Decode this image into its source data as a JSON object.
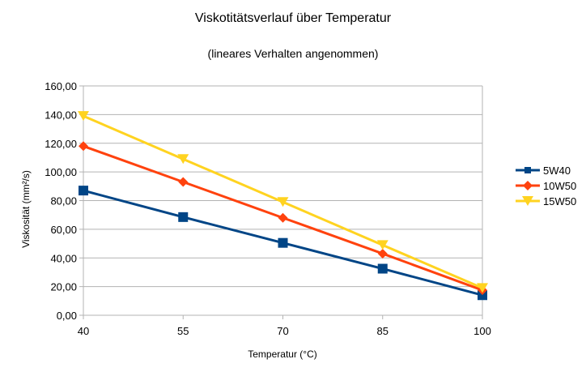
{
  "chart_data": {
    "type": "line",
    "title": "Viskotitätsverlauf über Temperatur",
    "subtitle": "(lineares Verhalten angenommen)",
    "xlabel": "Temperatur (°C)",
    "ylabel": "Viskosität (mm²/s)",
    "categories": [
      "40",
      "55",
      "70",
      "85",
      "100"
    ],
    "ylim": [
      0,
      160
    ],
    "yticks": [
      "0,00",
      "20,00",
      "40,00",
      "60,00",
      "80,00",
      "100,00",
      "120,00",
      "140,00",
      "160,00"
    ],
    "ytick_values": [
      0,
      20,
      40,
      60,
      80,
      100,
      120,
      140,
      160
    ],
    "grid": true,
    "legend_position": "right",
    "series": [
      {
        "name": "5W40",
        "color": "#004586",
        "marker": "square",
        "values": [
          87,
          68.5,
          50.5,
          32.5,
          14
        ]
      },
      {
        "name": "10W50",
        "color": "#ff420e",
        "marker": "diamond",
        "values": [
          118,
          93,
          68,
          43,
          17.5
        ]
      },
      {
        "name": "15W50",
        "color": "#ffd320",
        "marker": "triangle-down",
        "values": [
          139,
          109,
          79,
          49,
          19
        ]
      }
    ]
  }
}
